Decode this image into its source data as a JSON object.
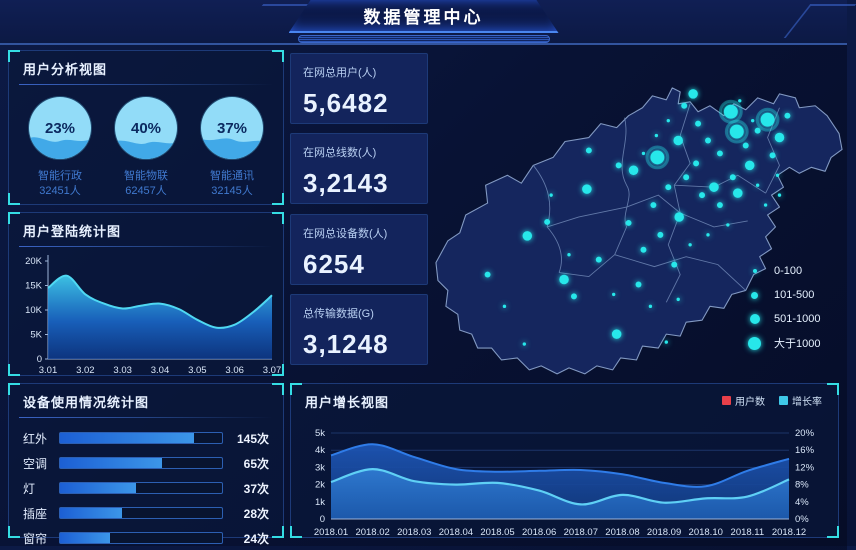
{
  "header": {
    "title": "数据管理中心"
  },
  "panels": {
    "user_analysis": {
      "title": "用户分析视图",
      "gauges": [
        {
          "percent": "23%",
          "label": "智能行政",
          "count": "32451人"
        },
        {
          "percent": "40%",
          "label": "智能物联",
          "count": "62457人"
        },
        {
          "percent": "37%",
          "label": "智能通讯",
          "count": "32145人"
        }
      ]
    },
    "login_stats": {
      "title": "用户登陆统计图"
    },
    "device_usage": {
      "title": "设备使用情况统计图"
    },
    "user_growth": {
      "title": "用户增长视图",
      "legend": [
        {
          "label": "用户数",
          "color": "#e8404a"
        },
        {
          "label": "增长率",
          "color": "#3fc8e8"
        }
      ]
    }
  },
  "stats": [
    {
      "label": "在网总用户(人)",
      "value": "5,6482"
    },
    {
      "label": "在网总线数(人)",
      "value": "3,2143"
    },
    {
      "label": "在网总设备数(人)",
      "value": "6254"
    },
    {
      "label": "总传输数据(G)",
      "value": "3,1248"
    }
  ],
  "map": {
    "legend": [
      {
        "label": "0-100",
        "size": 1
      },
      {
        "label": "101-500",
        "size": 2
      },
      {
        "label": "501-1000",
        "size": 3
      },
      {
        "label": "大于1000",
        "size": 4
      }
    ],
    "dot_color": "#27e7ea",
    "dots": [
      [
        303,
        66,
        4
      ],
      [
        340,
        74,
        4
      ],
      [
        309,
        86,
        4
      ],
      [
        229,
        112,
        4
      ],
      [
        98,
        191,
        3
      ],
      [
        158,
        144,
        3
      ],
      [
        205,
        125,
        3
      ],
      [
        265,
        48,
        3
      ],
      [
        250,
        95,
        3
      ],
      [
        286,
        142,
        3
      ],
      [
        322,
        120,
        3
      ],
      [
        352,
        92,
        3
      ],
      [
        135,
        235,
        3
      ],
      [
        188,
        290,
        3
      ],
      [
        251,
        172,
        3
      ],
      [
        310,
        148,
        3
      ],
      [
        58,
        230,
        2
      ],
      [
        118,
        177,
        2
      ],
      [
        145,
        252,
        2
      ],
      [
        170,
        215,
        2
      ],
      [
        210,
        240,
        2
      ],
      [
        232,
        190,
        2
      ],
      [
        246,
        220,
        2
      ],
      [
        190,
        120,
        2
      ],
      [
        160,
        105,
        2
      ],
      [
        256,
        60,
        2
      ],
      [
        270,
        78,
        2
      ],
      [
        280,
        95,
        2
      ],
      [
        292,
        108,
        2
      ],
      [
        268,
        118,
        2
      ],
      [
        258,
        132,
        2
      ],
      [
        274,
        150,
        2
      ],
      [
        292,
        160,
        2
      ],
      [
        305,
        132,
        2
      ],
      [
        318,
        100,
        2
      ],
      [
        330,
        85,
        2
      ],
      [
        345,
        110,
        2
      ],
      [
        360,
        70,
        2
      ],
      [
        240,
        142,
        2
      ],
      [
        225,
        160,
        2
      ],
      [
        200,
        178,
        2
      ],
      [
        215,
        205,
        2
      ],
      [
        75,
        262,
        1
      ],
      [
        95,
        300,
        1
      ],
      [
        140,
        210,
        1
      ],
      [
        185,
        250,
        1
      ],
      [
        222,
        262,
        1
      ],
      [
        250,
        255,
        1
      ],
      [
        280,
        190,
        1
      ],
      [
        300,
        180,
        1
      ],
      [
        330,
        140,
        1
      ],
      [
        350,
        130,
        1
      ],
      [
        240,
        75,
        1
      ],
      [
        228,
        90,
        1
      ],
      [
        215,
        108,
        1
      ],
      [
        312,
        55,
        1
      ],
      [
        325,
        75,
        1
      ],
      [
        122,
        150,
        1
      ],
      [
        338,
        160,
        1
      ],
      [
        262,
        200,
        1
      ],
      [
        238,
        298,
        1
      ],
      [
        352,
        150,
        1
      ]
    ]
  },
  "chart_data": [
    {
      "id": "login_chart",
      "type": "area",
      "title": "用户登陆统计图",
      "x": [
        "3.01",
        "3.02",
        "3.03",
        "3.04",
        "3.05",
        "3.06",
        "3.07"
      ],
      "yticks": [
        "0",
        "5K",
        "10K",
        "15K",
        "20K"
      ],
      "ylim": [
        0,
        20
      ],
      "note": "samples_k are values in thousands at tick points and midpoints (13 evenly spaced samples)",
      "samples_k": [
        14.5,
        17.0,
        13.2,
        11.3,
        10.3,
        10.9,
        11.3,
        10.2,
        8.0,
        6.4,
        7.0,
        9.6,
        13.0
      ],
      "line_color": "#4fd8f2",
      "grid": false
    },
    {
      "id": "device_usage_chart",
      "type": "bar",
      "title": "设备使用情况统计图",
      "categories": [
        "红外",
        "空调",
        "灯",
        "插座",
        "窗帘"
      ],
      "values": [
        145,
        65,
        37,
        28,
        24
      ],
      "unit": "次",
      "bar_fill_percent": [
        83,
        63,
        47,
        38,
        31
      ],
      "orientation": "horizontal"
    },
    {
      "id": "user_growth_chart",
      "type": "area",
      "title": "用户增长视图",
      "x": [
        "2018.01",
        "2018.02",
        "2018.03",
        "2018.04",
        "2018.05",
        "2018.06",
        "2018.07",
        "2018.08",
        "2018.09",
        "2018.10",
        "2018.11",
        "2018.12"
      ],
      "left_ticks": [
        "0",
        "1k",
        "2k",
        "3k",
        "4k",
        "5k"
      ],
      "right_ticks": [
        "0%",
        "4%",
        "8%",
        "12%",
        "16%",
        "20%"
      ],
      "left_ylim_k": [
        0,
        5
      ],
      "right_ylim_pct": [
        0,
        20
      ],
      "legend_position": "top-right",
      "grid": true,
      "series": [
        {
          "name": "用户数",
          "axis": "left",
          "values_k": [
            3.7,
            4.35,
            3.6,
            2.9,
            2.75,
            2.8,
            2.85,
            2.6,
            2.1,
            1.9,
            2.8,
            3.5
          ],
          "line_color": "#2f7ce8"
        },
        {
          "name": "增长率",
          "axis": "right",
          "percent": [
            8.6,
            11.6,
            8.8,
            8.0,
            8.4,
            6.6,
            3.4,
            5.6,
            3.8,
            4.8,
            5.2,
            9.2
          ],
          "line_color": "#5fd0f5"
        }
      ]
    }
  ]
}
